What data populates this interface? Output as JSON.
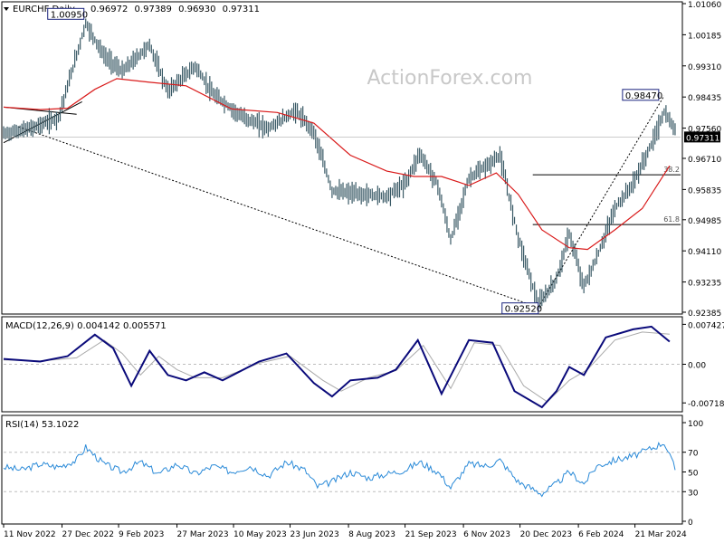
{
  "chart_data": {
    "type": "line",
    "symbol": "EURCHF,Daily",
    "ohlc": {
      "open": "0.96972",
      "high": "0.97389",
      "low": "0.96930",
      "close": "0.97311"
    },
    "watermark": "ActionForex.com",
    "price_panel": {
      "ylim": [
        0.92385,
        1.0106
      ],
      "y_ticks": [
        "1.01060",
        "1.00185",
        "0.99310",
        "0.98435",
        "0.97560",
        "0.96710",
        "0.95835",
        "0.94985",
        "0.94110",
        "0.93235",
        "0.92385"
      ],
      "current_price": "0.97311",
      "annotations": [
        {
          "label": "1.00950",
          "value": 1.0095,
          "x_index": 45
        },
        {
          "label": "0.98470",
          "value": 0.9847,
          "x_index": 362
        },
        {
          "label": "0.92520",
          "value": 0.9252,
          "x_index": 293
        }
      ],
      "fib_levels": [
        {
          "label": "38.2",
          "value": 0.9625
        },
        {
          "label": "61.8",
          "value": 0.9485
        }
      ],
      "price_series": [
        {
          "name": "price",
          "points": [
            [
              0,
              0.974
            ],
            [
              15,
              0.9755
            ],
            [
              30,
              0.9785
            ],
            [
              45,
              1.005
            ],
            [
              55,
              0.996
            ],
            [
              65,
              0.9915
            ],
            [
              80,
              0.999
            ],
            [
              90,
              0.986
            ],
            [
              105,
              0.993
            ],
            [
              115,
              0.985
            ],
            [
              130,
              0.979
            ],
            [
              145,
              0.9755
            ],
            [
              160,
              0.9805
            ],
            [
              170,
              0.9745
            ],
            [
              180,
              0.958
            ],
            [
              195,
              0.957
            ],
            [
              210,
              0.9565
            ],
            [
              220,
              0.96
            ],
            [
              228,
              0.9685
            ],
            [
              238,
              0.9595
            ],
            [
              245,
              0.944
            ],
            [
              255,
              0.9615
            ],
            [
              265,
              0.965
            ],
            [
              272,
              0.968
            ],
            [
              282,
              0.945
            ],
            [
              293,
              0.926
            ],
            [
              303,
              0.933
            ],
            [
              310,
              0.946
            ],
            [
              318,
              0.931
            ],
            [
              325,
              0.939
            ],
            [
              335,
              0.953
            ],
            [
              345,
              0.96
            ],
            [
              355,
              0.971
            ],
            [
              362,
              0.98
            ],
            [
              368,
              0.975
            ]
          ]
        },
        {
          "name": "ma",
          "points": [
            [
              0,
              0.9815
            ],
            [
              20,
              0.9808
            ],
            [
              35,
              0.9812
            ],
            [
              50,
              0.9865
            ],
            [
              62,
              0.9895
            ],
            [
              80,
              0.9885
            ],
            [
              100,
              0.9875
            ],
            [
              125,
              0.981
            ],
            [
              150,
              0.98
            ],
            [
              170,
              0.977
            ],
            [
              190,
              0.968
            ],
            [
              210,
              0.9635
            ],
            [
              225,
              0.962
            ],
            [
              240,
              0.962
            ],
            [
              255,
              0.9595
            ],
            [
              270,
              0.963
            ],
            [
              282,
              0.957
            ],
            [
              295,
              0.947
            ],
            [
              310,
              0.942
            ],
            [
              320,
              0.9415
            ],
            [
              335,
              0.947
            ],
            [
              350,
              0.953
            ],
            [
              365,
              0.965
            ]
          ]
        }
      ]
    },
    "macd_panel": {
      "title": "MACD(12,26,9) 0.004142 0.005571",
      "ylim": [
        -0.0085,
        0.0085
      ],
      "y_ticks": [
        "0.007427",
        "0.00",
        "-0.007186"
      ],
      "series": [
        {
          "name": "macd",
          "points": [
            [
              0,
              0.001
            ],
            [
              20,
              0.0005
            ],
            [
              35,
              0.0015
            ],
            [
              50,
              0.0055
            ],
            [
              60,
              0.003
            ],
            [
              70,
              -0.004
            ],
            [
              80,
              0.0025
            ],
            [
              90,
              -0.002
            ],
            [
              100,
              -0.003
            ],
            [
              110,
              -0.0015
            ],
            [
              120,
              -0.003
            ],
            [
              140,
              0.0005
            ],
            [
              155,
              0.002
            ],
            [
              170,
              -0.0035
            ],
            [
              180,
              -0.006
            ],
            [
              190,
              -0.003
            ],
            [
              205,
              -0.0025
            ],
            [
              215,
              -0.001
            ],
            [
              227,
              0.0045
            ],
            [
              240,
              -0.0055
            ],
            [
              255,
              0.0045
            ],
            [
              268,
              0.004
            ],
            [
              280,
              -0.005
            ],
            [
              295,
              -0.008
            ],
            [
              303,
              -0.005
            ],
            [
              310,
              -0.0005
            ],
            [
              318,
              -0.002
            ],
            [
              330,
              0.005
            ],
            [
              345,
              0.0065
            ],
            [
              355,
              0.007
            ],
            [
              365,
              0.0042
            ]
          ]
        },
        {
          "name": "signal",
          "points": [
            [
              0,
              0.0008
            ],
            [
              20,
              0.0006
            ],
            [
              40,
              0.0012
            ],
            [
              55,
              0.0045
            ],
            [
              65,
              0.002
            ],
            [
              75,
              -0.002
            ],
            [
              85,
              0.0015
            ],
            [
              95,
              -0.001
            ],
            [
              105,
              -0.0025
            ],
            [
              120,
              -0.0025
            ],
            [
              140,
              0.0002
            ],
            [
              157,
              0.0015
            ],
            [
              175,
              -0.003
            ],
            [
              185,
              -0.005
            ],
            [
              200,
              -0.0025
            ],
            [
              215,
              -0.0012
            ],
            [
              230,
              0.0035
            ],
            [
              245,
              -0.0045
            ],
            [
              258,
              0.004
            ],
            [
              272,
              0.0035
            ],
            [
              285,
              -0.004
            ],
            [
              298,
              -0.007
            ],
            [
              310,
              -0.003
            ],
            [
              320,
              -0.001
            ],
            [
              335,
              0.0045
            ],
            [
              350,
              0.006
            ],
            [
              365,
              0.0056
            ]
          ]
        }
      ]
    },
    "rsi_panel": {
      "title": "RSI(14) 53.1022",
      "ylim": [
        0,
        100
      ],
      "y_ticks": [
        "100",
        "70",
        "50",
        "30",
        "0"
      ],
      "levels": [
        70,
        30
      ],
      "points": [
        [
          0,
          55
        ],
        [
          10,
          52
        ],
        [
          20,
          58
        ],
        [
          30,
          55
        ],
        [
          40,
          62
        ],
        [
          45,
          75
        ],
        [
          55,
          58
        ],
        [
          65,
          50
        ],
        [
          75,
          60
        ],
        [
          85,
          48
        ],
        [
          95,
          58
        ],
        [
          105,
          48
        ],
        [
          115,
          56
        ],
        [
          125,
          50
        ],
        [
          135,
          56
        ],
        [
          145,
          46
        ],
        [
          155,
          60
        ],
        [
          165,
          52
        ],
        [
          172,
          35
        ],
        [
          180,
          40
        ],
        [
          190,
          50
        ],
        [
          200,
          44
        ],
        [
          210,
          48
        ],
        [
          220,
          52
        ],
        [
          228,
          60
        ],
        [
          238,
          50
        ],
        [
          245,
          34
        ],
        [
          255,
          58
        ],
        [
          265,
          56
        ],
        [
          272,
          62
        ],
        [
          282,
          40
        ],
        [
          295,
          28
        ],
        [
          303,
          38
        ],
        [
          310,
          50
        ],
        [
          318,
          38
        ],
        [
          325,
          56
        ],
        [
          335,
          62
        ],
        [
          345,
          66
        ],
        [
          355,
          74
        ],
        [
          362,
          80
        ],
        [
          368,
          53
        ]
      ]
    },
    "x_ticks": [
      {
        "label": "11 Nov 2022",
        "index": 0
      },
      {
        "label": "27 Dec 2022",
        "index": 32
      },
      {
        "label": "9 Feb 2023",
        "index": 63
      },
      {
        "label": "27 Mar 2023",
        "index": 95
      },
      {
        "label": "10 May 2023",
        "index": 126
      },
      {
        "label": "23 Jun 2023",
        "index": 157
      },
      {
        "label": "8 Aug 2023",
        "index": 189
      },
      {
        "label": "21 Sep 2023",
        "index": 220
      },
      {
        "label": "6 Nov 2023",
        "index": 252
      },
      {
        "label": "20 Dec 2023",
        "index": 283
      },
      {
        "label": "6 Feb 2024",
        "index": 315
      },
      {
        "label": "21 Mar 2024",
        "index": 346
      }
    ],
    "colors": {
      "price": "#3a5a66",
      "ma": "#d91a1a",
      "macd": "#0a0a7a",
      "signal": "#aaaaaa",
      "rsi": "#2a8ad8",
      "grid": "#bdbdbd",
      "text": "#000000",
      "label_box": "#1a237e"
    }
  }
}
